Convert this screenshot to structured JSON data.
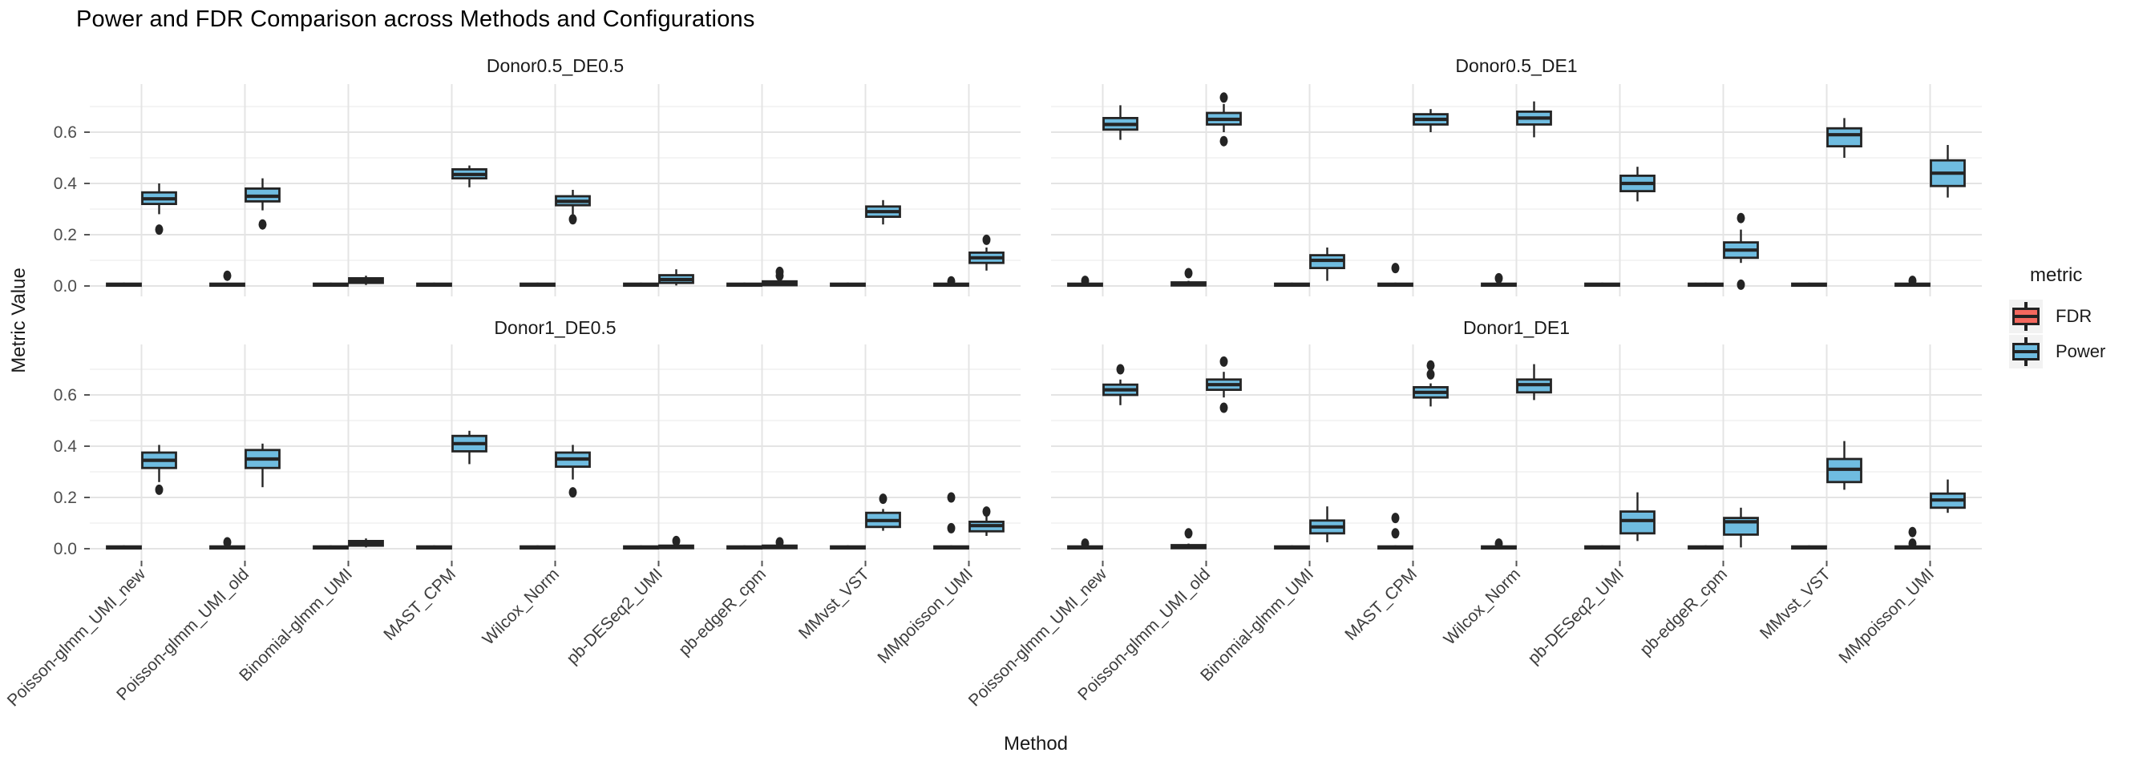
{
  "title": "Power and FDR Comparison across Methods and Configurations",
  "axes": {
    "x_title": "Method",
    "y_title": "Metric Value",
    "y_ticks": [
      0.0,
      0.2,
      0.4,
      0.6
    ],
    "y_tick_labels": [
      "0.0",
      "0.2",
      "0.4",
      "0.6"
    ],
    "y_minor": [
      0.1,
      0.3,
      0.5,
      0.7
    ]
  },
  "legend": {
    "title": "metric",
    "items": [
      {
        "label": "FDR",
        "color": "#F4685E"
      },
      {
        "label": "Power",
        "color": "#6FBCE0"
      }
    ]
  },
  "colors": {
    "fdr": "#F4685E",
    "power": "#6FBCE0",
    "box_stroke": "#242424",
    "grid_major": "#E4E4E4",
    "grid_minor": "#F1F1F1",
    "text_dark": "#1A1A1A",
    "text_axis": "#4D4D4D",
    "tick": "#555555"
  },
  "chart_data": {
    "type": "boxplot",
    "title": "Power and FDR Comparison across Methods and Configurations",
    "xlabel": "Method",
    "ylabel": "Metric Value",
    "ylim": [
      -0.04,
      0.79
    ],
    "grid": true,
    "legend_position": "right",
    "facets": [
      {
        "title": "Donor0.5_DE0.5"
      },
      {
        "title": "Donor0.5_DE1"
      },
      {
        "title": "Donor1_DE0.5"
      },
      {
        "title": "Donor1_DE1"
      }
    ],
    "methods": [
      "Poisson-glmm_UMI_new",
      "Poisson-glmm_UMI_old",
      "Binomial-glmm_UMI",
      "MAST_CPM",
      "Wilcox_Norm",
      "pb-DESeq2_UMI",
      "pb-edgeR_cpm",
      "MMvst_VST",
      "MMpoisson_UMI"
    ],
    "metrics": [
      "FDR",
      "Power"
    ],
    "box_format": [
      "whisker_low",
      "q1",
      "median",
      "q3",
      "whisker_high",
      "outliers"
    ],
    "boxes": {
      "Donor0.5_DE0.5": {
        "FDR": [
          [
            0,
            0.001,
            0.004,
            0.009,
            0.013,
            []
          ],
          [
            0,
            0.001,
            0.004,
            0.009,
            0.013,
            [
              0.04
            ]
          ],
          [
            0,
            0.001,
            0.004,
            0.009,
            0.013,
            []
          ],
          [
            0,
            0.001,
            0.004,
            0.009,
            0.013,
            []
          ],
          [
            0,
            0.001,
            0.004,
            0.009,
            0.013,
            []
          ],
          [
            0,
            0.001,
            0.004,
            0.009,
            0.013,
            []
          ],
          [
            0,
            0.001,
            0.004,
            0.009,
            0.013,
            []
          ],
          [
            0,
            0.001,
            0.004,
            0.009,
            0.013,
            []
          ],
          [
            0,
            0.001,
            0.004,
            0.009,
            0.013,
            [
              0.018
            ]
          ]
        ],
        "Power": [
          [
            0.28,
            0.32,
            0.34,
            0.365,
            0.4,
            [
              0.22
            ]
          ],
          [
            0.295,
            0.33,
            0.35,
            0.38,
            0.42,
            [
              0.24
            ]
          ],
          [
            0.004,
            0.012,
            0.02,
            0.03,
            0.04,
            []
          ],
          [
            0.385,
            0.42,
            0.435,
            0.455,
            0.47,
            []
          ],
          [
            0.28,
            0.315,
            0.33,
            0.35,
            0.375,
            [
              0.26
            ]
          ],
          [
            0.002,
            0.012,
            0.025,
            0.042,
            0.065,
            []
          ],
          [
            0,
            0.003,
            0.008,
            0.018,
            0.026,
            [
              0.04,
              0.055
            ]
          ],
          [
            0.24,
            0.27,
            0.29,
            0.31,
            0.335,
            []
          ],
          [
            0.06,
            0.09,
            0.11,
            0.13,
            0.15,
            [
              0.18
            ]
          ]
        ]
      },
      "Donor0.5_DE1": {
        "FDR": [
          [
            0,
            0.001,
            0.004,
            0.009,
            0.013,
            [
              0.02
            ]
          ],
          [
            0,
            0.002,
            0.006,
            0.014,
            0.02,
            [
              0.05
            ]
          ],
          [
            0,
            0.001,
            0.004,
            0.009,
            0.013,
            []
          ],
          [
            0,
            0.001,
            0.004,
            0.009,
            0.013,
            [
              0.07
            ]
          ],
          [
            0,
            0.001,
            0.004,
            0.009,
            0.013,
            [
              0.03
            ]
          ],
          [
            0,
            0.001,
            0.004,
            0.009,
            0.013,
            []
          ],
          [
            0,
            0.001,
            0.004,
            0.009,
            0.013,
            []
          ],
          [
            0,
            0.001,
            0.004,
            0.009,
            0.013,
            []
          ],
          [
            0,
            0.001,
            0.004,
            0.009,
            0.013,
            [
              0.02
            ]
          ]
        ],
        "Power": [
          [
            0.57,
            0.61,
            0.63,
            0.655,
            0.705,
            []
          ],
          [
            0.6,
            0.63,
            0.65,
            0.675,
            0.71,
            [
              0.735,
              0.565
            ]
          ],
          [
            0.02,
            0.07,
            0.1,
            0.12,
            0.15,
            []
          ],
          [
            0.6,
            0.63,
            0.65,
            0.67,
            0.69,
            []
          ],
          [
            0.58,
            0.63,
            0.655,
            0.68,
            0.72,
            []
          ],
          [
            0.33,
            0.37,
            0.4,
            0.43,
            0.465,
            []
          ],
          [
            0.09,
            0.11,
            0.14,
            0.17,
            0.22,
            [
              0.265,
              0.005
            ]
          ],
          [
            0.5,
            0.545,
            0.59,
            0.615,
            0.655,
            []
          ],
          [
            0.345,
            0.39,
            0.44,
            0.49,
            0.55,
            []
          ]
        ]
      },
      "Donor1_DE0.5": {
        "FDR": [
          [
            0,
            0.001,
            0.004,
            0.009,
            0.013,
            []
          ],
          [
            0,
            0.001,
            0.004,
            0.009,
            0.013,
            [
              0.025
            ]
          ],
          [
            0,
            0.001,
            0.004,
            0.009,
            0.013,
            []
          ],
          [
            0,
            0.001,
            0.004,
            0.009,
            0.013,
            []
          ],
          [
            0,
            0.001,
            0.004,
            0.009,
            0.013,
            []
          ],
          [
            0,
            0.001,
            0.004,
            0.009,
            0.013,
            []
          ],
          [
            0,
            0.001,
            0.004,
            0.009,
            0.013,
            []
          ],
          [
            0,
            0.001,
            0.004,
            0.009,
            0.013,
            []
          ],
          [
            0,
            0.001,
            0.004,
            0.009,
            0.013,
            [
              0.08,
              0.2
            ]
          ]
        ],
        "Power": [
          [
            0.26,
            0.315,
            0.345,
            0.375,
            0.405,
            [
              0.23
            ]
          ],
          [
            0.24,
            0.315,
            0.35,
            0.385,
            0.41,
            []
          ],
          [
            0.005,
            0.012,
            0.02,
            0.03,
            0.04,
            []
          ],
          [
            0.33,
            0.38,
            0.41,
            0.44,
            0.46,
            []
          ],
          [
            0.27,
            0.32,
            0.35,
            0.375,
            0.405,
            [
              0.22
            ]
          ],
          [
            0,
            0.002,
            0.006,
            0.012,
            0.02,
            [
              0.03
            ]
          ],
          [
            0,
            0.002,
            0.006,
            0.012,
            0.018,
            [
              0.025
            ]
          ],
          [
            0.07,
            0.085,
            0.11,
            0.14,
            0.155,
            [
              0.195
            ]
          ],
          [
            0.05,
            0.068,
            0.09,
            0.105,
            0.125,
            [
              0.145
            ]
          ]
        ]
      },
      "Donor1_DE1": {
        "FDR": [
          [
            0,
            0.001,
            0.004,
            0.009,
            0.013,
            [
              0.02
            ]
          ],
          [
            0,
            0.002,
            0.006,
            0.014,
            0.02,
            [
              0.06
            ]
          ],
          [
            0,
            0.001,
            0.004,
            0.009,
            0.013,
            []
          ],
          [
            0,
            0.001,
            0.004,
            0.009,
            0.013,
            [
              0.06,
              0.12
            ]
          ],
          [
            0,
            0.001,
            0.004,
            0.009,
            0.013,
            [
              0.02
            ]
          ],
          [
            0,
            0.001,
            0.004,
            0.009,
            0.013,
            []
          ],
          [
            0,
            0.001,
            0.004,
            0.009,
            0.013,
            []
          ],
          [
            0,
            0.001,
            0.004,
            0.009,
            0.013,
            []
          ],
          [
            0,
            0.001,
            0.004,
            0.009,
            0.013,
            [
              0.02,
              0.065
            ]
          ]
        ],
        "Power": [
          [
            0.56,
            0.6,
            0.62,
            0.64,
            0.66,
            [
              0.7
            ]
          ],
          [
            0.59,
            0.62,
            0.64,
            0.66,
            0.69,
            [
              0.73,
              0.55
            ]
          ],
          [
            0.025,
            0.06,
            0.085,
            0.11,
            0.165,
            []
          ],
          [
            0.555,
            0.59,
            0.61,
            0.63,
            0.645,
            [
              0.68,
              0.715
            ]
          ],
          [
            0.58,
            0.61,
            0.64,
            0.66,
            0.72,
            []
          ],
          [
            0.03,
            0.06,
            0.11,
            0.145,
            0.22,
            []
          ],
          [
            0.005,
            0.055,
            0.105,
            0.12,
            0.16,
            []
          ],
          [
            0.23,
            0.26,
            0.31,
            0.35,
            0.42,
            []
          ],
          [
            0.14,
            0.16,
            0.19,
            0.215,
            0.27,
            []
          ]
        ]
      }
    }
  }
}
